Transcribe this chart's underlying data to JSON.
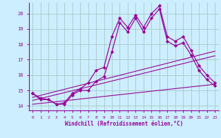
{
  "xlabel": "Windchill (Refroidissement éolien,°C)",
  "bg_color": "#cceeff",
  "grid_color": "#aacccc",
  "line_color": "#990099",
  "xlim": [
    -0.5,
    23.5
  ],
  "ylim": [
    13.7,
    20.7
  ],
  "xticks": [
    0,
    1,
    2,
    3,
    4,
    5,
    6,
    7,
    8,
    9,
    10,
    11,
    12,
    13,
    14,
    15,
    16,
    17,
    18,
    19,
    20,
    21,
    22,
    23
  ],
  "yticks": [
    14,
    15,
    16,
    17,
    18,
    19,
    20
  ],
  "curve1_x": [
    0,
    1,
    2,
    3,
    4,
    5,
    6,
    7,
    8,
    9,
    10,
    11,
    12,
    13,
    14,
    15,
    16,
    17,
    18,
    19,
    20,
    21,
    22,
    23
  ],
  "curve1_y": [
    14.8,
    14.5,
    14.4,
    14.1,
    14.2,
    14.8,
    15.1,
    15.5,
    16.3,
    16.5,
    18.5,
    19.7,
    19.1,
    19.9,
    19.1,
    20.0,
    20.5,
    18.5,
    18.2,
    18.5,
    17.6,
    16.6,
    16.0,
    15.5
  ],
  "curve2_x": [
    0,
    1,
    2,
    3,
    4,
    5,
    6,
    7,
    8,
    9,
    10,
    11,
    12,
    13,
    14,
    15,
    16,
    17,
    18,
    19,
    20,
    21,
    22,
    23
  ],
  "curve2_y": [
    14.8,
    14.4,
    14.4,
    14.1,
    14.1,
    14.7,
    15.0,
    15.0,
    15.6,
    15.9,
    17.5,
    19.4,
    18.8,
    19.7,
    18.8,
    19.7,
    20.3,
    18.2,
    17.9,
    18.1,
    17.3,
    16.3,
    15.7,
    15.3
  ],
  "line1_x": [
    0,
    23
  ],
  "line1_y": [
    14.55,
    17.55
  ],
  "line2_x": [
    0,
    23
  ],
  "line2_y": [
    14.35,
    17.25
  ],
  "line3_x": [
    0,
    23
  ],
  "line3_y": [
    14.1,
    15.4
  ]
}
